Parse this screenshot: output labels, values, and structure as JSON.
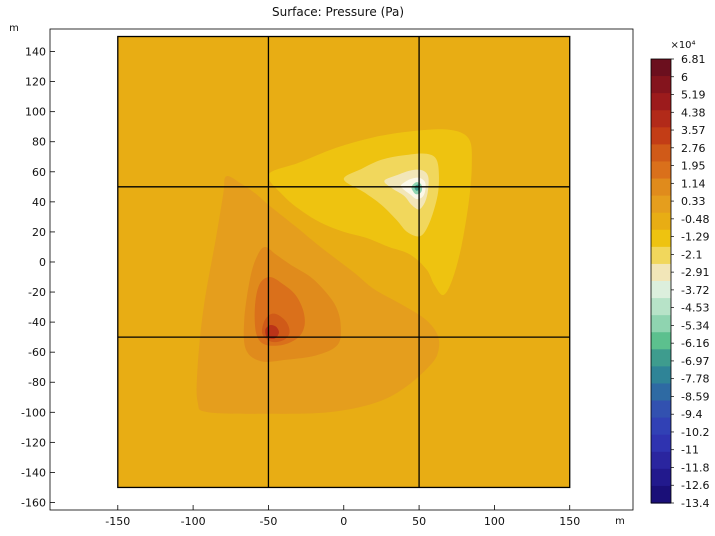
{
  "chart_data": {
    "type": "heatmap",
    "title": "Surface: Pressure (Pa)",
    "xlabel": "m",
    "ylabel": "m",
    "xlim": [
      -195,
      192
    ],
    "ylim": [
      -165,
      155
    ],
    "x_ticks": [
      -150,
      -100,
      -50,
      0,
      50,
      100,
      150
    ],
    "y_ticks": [
      140,
      120,
      100,
      80,
      60,
      40,
      20,
      0,
      -20,
      -40,
      -60,
      -80,
      -100,
      -120,
      -140,
      -160
    ],
    "domain": {
      "x": [
        -150,
        150
      ],
      "y": [
        -150,
        150
      ]
    },
    "grid_lines": {
      "x": [
        -50,
        50
      ],
      "y": [
        50,
        -50
      ]
    },
    "background_color": "#e8ad14",
    "contours": [
      {
        "level": "0.33",
        "color": "#e59e1d",
        "points": [
          [
            -78,
            57
          ],
          [
            -68,
            52
          ],
          [
            -58,
            45
          ],
          [
            -50,
            38
          ],
          [
            -40,
            30
          ],
          [
            -30,
            22
          ],
          [
            -18,
            12
          ],
          [
            -5,
            2
          ],
          [
            8,
            -8
          ],
          [
            20,
            -18
          ],
          [
            38,
            -28
          ],
          [
            54,
            -38
          ],
          [
            62,
            -48
          ],
          [
            63,
            -58
          ],
          [
            58,
            -68
          ],
          [
            40,
            -84
          ],
          [
            20,
            -94
          ],
          [
            -10,
            -100
          ],
          [
            -50,
            -101
          ],
          [
            -90,
            -100
          ],
          [
            -97,
            -93
          ],
          [
            -97,
            -70
          ],
          [
            -93,
            -30
          ],
          [
            -85,
            15
          ],
          [
            -80,
            45
          ]
        ]
      },
      {
        "level": "1.14",
        "color": "#e08b1c",
        "points": [
          [
            -52,
            10
          ],
          [
            -45,
            5
          ],
          [
            -35,
            -2
          ],
          [
            -22,
            -10
          ],
          [
            -12,
            -20
          ],
          [
            -5,
            -30
          ],
          [
            -2,
            -42
          ],
          [
            -4,
            -55
          ],
          [
            -18,
            -62
          ],
          [
            -38,
            -65
          ],
          [
            -55,
            -66
          ],
          [
            -65,
            -58
          ],
          [
            -66,
            -38
          ],
          [
            -62,
            -10
          ],
          [
            -57,
            5
          ]
        ]
      },
      {
        "level": "1.95",
        "color": "#da701b",
        "points": [
          [
            -49,
            -10
          ],
          [
            -40,
            -15
          ],
          [
            -32,
            -22
          ],
          [
            -27,
            -32
          ],
          [
            -26,
            -42
          ],
          [
            -30,
            -50
          ],
          [
            -40,
            -55
          ],
          [
            -52,
            -55
          ],
          [
            -58,
            -48
          ],
          [
            -59,
            -30
          ],
          [
            -56,
            -15
          ]
        ]
      },
      {
        "level": "2.76",
        "color": "#d05a18",
        "points": [
          [
            -44,
            -35
          ],
          [
            -38,
            -40
          ],
          [
            -36,
            -47
          ],
          [
            -40,
            -52
          ],
          [
            -48,
            -53
          ],
          [
            -54,
            -48
          ],
          [
            -53,
            -40
          ],
          [
            -49,
            -35
          ]
        ]
      },
      {
        "level": "4.38",
        "color": "#bb3318",
        "points": [
          [
            -45,
            -43
          ],
          [
            -43,
            -47
          ],
          [
            -46,
            -51
          ],
          [
            -51,
            -50
          ],
          [
            -52,
            -45
          ],
          [
            -49,
            -42
          ]
        ]
      },
      {
        "level": "-0.48",
        "color": "#eec310",
        "points": [
          [
            -50,
            58
          ],
          [
            -30,
            66
          ],
          [
            -5,
            76
          ],
          [
            20,
            83
          ],
          [
            45,
            87
          ],
          [
            70,
            88
          ],
          [
            83,
            82
          ],
          [
            85,
            65
          ],
          [
            83,
            40
          ],
          [
            78,
            10
          ],
          [
            72,
            -12
          ],
          [
            66,
            -22
          ],
          [
            60,
            -15
          ],
          [
            55,
            -5
          ],
          [
            44,
            5
          ],
          [
            30,
            10
          ],
          [
            15,
            16
          ],
          [
            0,
            20
          ],
          [
            -15,
            26
          ],
          [
            -28,
            34
          ],
          [
            -40,
            44
          ]
        ]
      },
      {
        "level": "-1.29",
        "color": "#f1d75c",
        "points": [
          [
            0,
            55
          ],
          [
            12,
            62
          ],
          [
            25,
            68
          ],
          [
            40,
            71
          ],
          [
            55,
            72
          ],
          [
            62,
            67
          ],
          [
            63,
            50
          ],
          [
            60,
            35
          ],
          [
            55,
            22
          ],
          [
            50,
            17
          ],
          [
            42,
            20
          ],
          [
            35,
            28
          ],
          [
            25,
            38
          ],
          [
            14,
            46
          ]
        ]
      },
      {
        "level": "-2.1",
        "color": "#f2e6b8",
        "points": [
          [
            27,
            54
          ],
          [
            36,
            58
          ],
          [
            45,
            61
          ],
          [
            52,
            61
          ],
          [
            56,
            57
          ],
          [
            56,
            48
          ],
          [
            54,
            40
          ],
          [
            50,
            35
          ],
          [
            45,
            38
          ],
          [
            40,
            44
          ],
          [
            32,
            49
          ]
        ]
      },
      {
        "level": "-2.91",
        "color": "#fbf8ea",
        "points": [
          [
            38,
            51
          ],
          [
            44,
            55
          ],
          [
            50,
            56
          ],
          [
            54,
            53
          ],
          [
            54,
            47
          ],
          [
            52,
            43
          ],
          [
            48,
            42
          ],
          [
            44,
            45
          ],
          [
            40,
            48
          ]
        ]
      },
      {
        "level": "-4.53",
        "color": "#8fd4b0",
        "points": [
          [
            45,
            50
          ],
          [
            48,
            53
          ],
          [
            51,
            52
          ],
          [
            52,
            49
          ],
          [
            51,
            46
          ],
          [
            48,
            45
          ],
          [
            46,
            47
          ]
        ]
      },
      {
        "level": "-6.16",
        "color": "#3e9c8e",
        "points": [
          [
            47,
            50
          ],
          [
            49,
            51.5
          ],
          [
            50.5,
            50
          ],
          [
            50,
            48
          ],
          [
            48,
            47.5
          ]
        ]
      }
    ],
    "colorbar": {
      "label": "×10⁴",
      "ticks": [
        "6.81",
        "6",
        "5.19",
        "4.38",
        "3.57",
        "2.76",
        "1.95",
        "1.14",
        "0.33",
        "-0.48",
        "-1.29",
        "-2.1",
        "-2.91",
        "-3.72",
        "-4.53",
        "-5.34",
        "-6.16",
        "-6.97",
        "-7.78",
        "-8.59",
        "-9.4",
        "-10.2",
        "-11",
        "-11.8",
        "-12.6",
        "-13.4"
      ],
      "colors": [
        "#6b0f1e",
        "#84141d",
        "#9c1b1c",
        "#b22a19",
        "#c33d16",
        "#d05a18",
        "#da701b",
        "#e08b1c",
        "#e59e1d",
        "#e8ad14",
        "#eec310",
        "#f1d75c",
        "#f2e6b8",
        "#dcefdd",
        "#b7e3c8",
        "#8fd4b0",
        "#5cc08e",
        "#3e9c8e",
        "#2f8497",
        "#2e6aa3",
        "#3251b0",
        "#3141b5",
        "#2f33b0",
        "#2a259f",
        "#22198d",
        "#1a0f78"
      ]
    }
  }
}
